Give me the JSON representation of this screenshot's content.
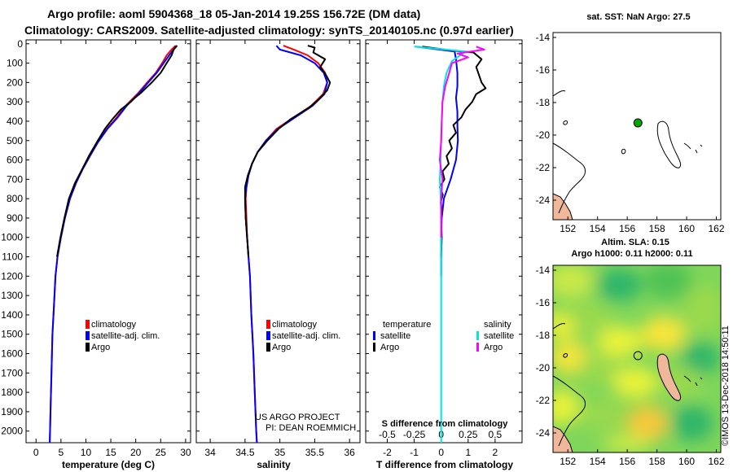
{
  "header": {
    "title_line1": "Argo profile: aoml 5904368_18 05-Jan-2014 19.25S 156.72E (DM data)",
    "title_line2": "Climatology: CARS2009. Satellite-adjusted climatology: synTS_20140105.nc (0.97d earlier)"
  },
  "colors": {
    "climatology": "#ff0000",
    "satellite": "#0000ff",
    "argo": "#000000",
    "salinity_satellite": "#00e5e5",
    "salinity_argo": "#ff00ff"
  },
  "depth_axis": {
    "ticks": [
      "0",
      "100",
      "200",
      "300",
      "400",
      "500",
      "600",
      "700",
      "800",
      "900",
      "1000",
      "1100",
      "1200",
      "1300",
      "1400",
      "1500",
      "1600",
      "1700",
      "1800",
      "1900",
      "2000"
    ],
    "range": [
      -20,
      2060
    ]
  },
  "chart_data": [
    {
      "type": "line",
      "name": "temperature-profile",
      "xlabel": "temperature (deg C)",
      "ylabel": "depth",
      "xlim": [
        -2,
        31
      ],
      "ylim": [
        2060,
        -20
      ],
      "xticks": [
        "0",
        "5",
        "10",
        "15",
        "20",
        "25",
        "30"
      ],
      "xtick_values": [
        0,
        5,
        10,
        15,
        20,
        25,
        30
      ],
      "legend": [
        "climatology",
        "satellite-adj. clim.",
        "Argo"
      ],
      "legend_location": "lower-right",
      "series": [
        {
          "name": "climatology",
          "color": "#ff0000",
          "points": [
            [
              28.0,
              10
            ],
            [
              27.2,
              30
            ],
            [
              26.2,
              60
            ],
            [
              25.3,
              100
            ],
            [
              24.0,
              150
            ],
            [
              22.3,
              200
            ],
            [
              20.3,
              260
            ],
            [
              18.0,
              320
            ],
            [
              16.2,
              380
            ],
            [
              14.2,
              440
            ],
            [
              12.3,
              510
            ],
            [
              10.8,
              580
            ],
            [
              9.3,
              650
            ],
            [
              8.0,
              720
            ],
            [
              6.8,
              800
            ],
            [
              5.8,
              900
            ],
            [
              5.0,
              1000
            ],
            [
              4.3,
              1100
            ],
            [
              3.9,
              1200
            ],
            [
              3.6,
              1350
            ],
            [
              3.3,
              1500
            ],
            [
              3.1,
              1700
            ],
            [
              2.9,
              1900
            ],
            [
              2.75,
              2060
            ]
          ]
        },
        {
          "name": "satellite-adj. clim.",
          "color": "#0000ff",
          "points": [
            [
              28.3,
              10
            ],
            [
              27.6,
              30
            ],
            [
              26.7,
              60
            ],
            [
              25.6,
              100
            ],
            [
              24.2,
              150
            ],
            [
              22.5,
              200
            ],
            [
              20.5,
              260
            ],
            [
              18.2,
              320
            ],
            [
              16.4,
              380
            ],
            [
              14.3,
              440
            ],
            [
              12.4,
              510
            ],
            [
              10.8,
              580
            ],
            [
              9.3,
              650
            ],
            [
              8.0,
              720
            ],
            [
              6.8,
              800
            ],
            [
              5.8,
              900
            ],
            [
              5.0,
              1000
            ],
            [
              4.3,
              1100
            ],
            [
              3.9,
              1200
            ],
            [
              3.6,
              1350
            ],
            [
              3.3,
              1500
            ],
            [
              3.1,
              1700
            ],
            [
              2.9,
              1900
            ],
            [
              2.75,
              2060
            ]
          ]
        },
        {
          "name": "Argo",
          "color": "#000000",
          "points": [
            [
              28.2,
              10
            ],
            [
              27.6,
              30
            ],
            [
              27.2,
              60
            ],
            [
              26.2,
              100
            ],
            [
              25.0,
              150
            ],
            [
              23.2,
              200
            ],
            [
              21.0,
              255
            ],
            [
              19.8,
              280
            ],
            [
              19.0,
              300
            ],
            [
              17.0,
              340
            ],
            [
              15.3,
              390
            ],
            [
              13.8,
              440
            ],
            [
              12.4,
              500
            ],
            [
              10.6,
              580
            ],
            [
              9.2,
              650
            ],
            [
              7.8,
              720
            ],
            [
              6.6,
              800
            ],
            [
              5.7,
              900
            ],
            [
              4.9,
              1000
            ],
            [
              4.2,
              1100
            ]
          ]
        }
      ]
    },
    {
      "type": "line",
      "name": "salinity-profile",
      "xlabel": "salinity",
      "ylabel": "depth",
      "xlim": [
        33.8,
        36.15
      ],
      "ylim": [
        2060,
        -20
      ],
      "xticks": [
        "34",
        "34.5",
        "35",
        "35.5",
        "36"
      ],
      "xtick_values": [
        34,
        34.5,
        35,
        35.5,
        36
      ],
      "legend": [
        "climatology",
        "satellite-adj. clim.",
        "Argo"
      ],
      "legend_location": "lower-right",
      "annotation_line1": "US ARGO PROJECT",
      "annotation_line2": "PI: DEAN ROEMMICH",
      "series": [
        {
          "name": "climatology",
          "color": "#ff0000",
          "points": [
            [
              35.05,
              10
            ],
            [
              35.2,
              30
            ],
            [
              35.4,
              60
            ],
            [
              35.55,
              100
            ],
            [
              35.65,
              150
            ],
            [
              35.68,
              200
            ],
            [
              35.62,
              260
            ],
            [
              35.45,
              320
            ],
            [
              35.2,
              380
            ],
            [
              34.95,
              440
            ],
            [
              34.8,
              500
            ],
            [
              34.68,
              560
            ],
            [
              34.6,
              620
            ],
            [
              34.55,
              680
            ],
            [
              34.52,
              740
            ],
            [
              34.51,
              800
            ],
            [
              34.52,
              900
            ],
            [
              34.53,
              1000
            ],
            [
              34.55,
              1100
            ],
            [
              34.57,
              1200
            ],
            [
              34.59,
              1400
            ],
            [
              34.62,
              1600
            ],
            [
              34.64,
              1800
            ],
            [
              34.66,
              2000
            ],
            [
              34.67,
              2060
            ]
          ]
        },
        {
          "name": "satellite-adj. clim.",
          "color": "#0000ff",
          "points": [
            [
              34.95,
              10
            ],
            [
              35.0,
              30
            ],
            [
              35.3,
              60
            ],
            [
              35.5,
              100
            ],
            [
              35.63,
              150
            ],
            [
              35.68,
              200
            ],
            [
              35.64,
              260
            ],
            [
              35.47,
              320
            ],
            [
              35.22,
              380
            ],
            [
              34.97,
              440
            ],
            [
              34.8,
              500
            ],
            [
              34.68,
              560
            ],
            [
              34.6,
              620
            ],
            [
              34.55,
              680
            ],
            [
              34.52,
              740
            ],
            [
              34.5,
              800
            ],
            [
              34.51,
              900
            ],
            [
              34.53,
              1000
            ],
            [
              34.55,
              1100
            ],
            [
              34.57,
              1200
            ],
            [
              34.59,
              1400
            ],
            [
              34.62,
              1600
            ],
            [
              34.64,
              1800
            ],
            [
              34.66,
              2000
            ],
            [
              34.67,
              2060
            ]
          ]
        },
        {
          "name": "Argo",
          "color": "#000000",
          "points": [
            [
              35.4,
              10
            ],
            [
              35.5,
              20
            ],
            [
              35.48,
              45
            ],
            [
              35.65,
              80
            ],
            [
              35.58,
              120
            ],
            [
              35.66,
              160
            ],
            [
              35.72,
              200
            ],
            [
              35.68,
              240
            ],
            [
              35.55,
              290
            ],
            [
              35.42,
              330
            ],
            [
              35.15,
              390
            ],
            [
              34.98,
              440
            ],
            [
              34.82,
              500
            ],
            [
              34.68,
              560
            ],
            [
              34.6,
              620
            ],
            [
              34.54,
              680
            ],
            [
              34.5,
              740
            ],
            [
              34.5,
              800
            ],
            [
              34.51,
              900
            ],
            [
              34.53,
              1000
            ],
            [
              34.55,
              1100
            ]
          ]
        }
      ]
    },
    {
      "type": "line",
      "name": "difference-profile",
      "xlabel": "T difference from climatology",
      "xlabel_top": "S difference from climatology",
      "ylabel": "depth",
      "xlim": [
        -2.8,
        3.0
      ],
      "ylim": [
        2060,
        -20
      ],
      "xticks": [
        "-2",
        "-1",
        "0",
        "1",
        "2"
      ],
      "xtick_values": [
        -2,
        -1,
        0,
        1,
        2
      ],
      "xticks_top": [
        "-0.5",
        "-0.25",
        "0",
        "0.25",
        "0.5"
      ],
      "xtick_top_values": [
        -2,
        -1,
        0,
        1,
        2
      ],
      "legend_left_title": "temperature",
      "legend_right_title": "salinity",
      "legend": [
        "satellite",
        "Argo"
      ],
      "series": [
        {
          "name": "temperature satellite",
          "color": "#0000ff",
          "points": [
            [
              -0.95,
              15
            ],
            [
              0.5,
              40
            ],
            [
              0.55,
              80
            ],
            [
              0.6,
              150
            ],
            [
              0.6,
              220
            ],
            [
              0.55,
              280
            ],
            [
              0.6,
              350
            ],
            [
              0.6,
              420
            ],
            [
              0.62,
              500
            ],
            [
              0.55,
              600
            ],
            [
              0.35,
              700
            ],
            [
              0.1,
              800
            ],
            [
              0.02,
              900
            ],
            [
              0.0,
              1000
            ],
            [
              0.0,
              1100
            ],
            [
              0.0,
              1200
            ]
          ]
        },
        {
          "name": "temperature Argo",
          "color": "#000000",
          "points": [
            [
              -0.7,
              15
            ],
            [
              0.4,
              35
            ],
            [
              1.2,
              45
            ],
            [
              1.5,
              80
            ],
            [
              1.3,
              120
            ],
            [
              1.4,
              160
            ],
            [
              1.5,
              200
            ],
            [
              1.65,
              230
            ],
            [
              1.3,
              260
            ],
            [
              1.15,
              300
            ],
            [
              0.9,
              340
            ],
            [
              0.75,
              380
            ],
            [
              0.45,
              420
            ],
            [
              0.55,
              460
            ],
            [
              0.3,
              500
            ],
            [
              0.4,
              540
            ],
            [
              0.2,
              580
            ],
            [
              0.28,
              620
            ],
            [
              0.05,
              660
            ],
            [
              0.12,
              700
            ],
            [
              -0.05,
              740
            ],
            [
              0.06,
              780
            ],
            [
              -0.02,
              820
            ],
            [
              0.04,
              860
            ],
            [
              0.0,
              900
            ],
            [
              0.02,
              1000
            ],
            [
              0.0,
              1100
            ]
          ]
        },
        {
          "name": "salinity satellite",
          "color": "#00e5e5",
          "points": [
            [
              -1.0,
              15
            ],
            [
              0.9,
              40
            ],
            [
              0.4,
              90
            ],
            [
              0.2,
              150
            ],
            [
              0.1,
              220
            ],
            [
              0.05,
              300
            ],
            [
              0.02,
              400
            ],
            [
              0.0,
              500
            ],
            [
              -0.02,
              600
            ],
            [
              -0.05,
              700
            ],
            [
              -0.02,
              800
            ],
            [
              0.0,
              900
            ],
            [
              0.0,
              1100
            ],
            [
              0.0,
              1400
            ],
            [
              0.0,
              1700
            ],
            [
              0.0,
              2060
            ]
          ]
        },
        {
          "name": "salinity Argo",
          "color": "#ff00ff",
          "points": [
            [
              1.3,
              15
            ],
            [
              1.6,
              30
            ],
            [
              0.6,
              50
            ],
            [
              1.0,
              70
            ],
            [
              0.4,
              100
            ],
            [
              0.3,
              150
            ],
            [
              0.15,
              220
            ],
            [
              0.05,
              300
            ],
            [
              0.02,
              400
            ],
            [
              0.0,
              500
            ],
            [
              -0.05,
              600
            ],
            [
              0.05,
              700
            ],
            [
              0.0,
              800
            ],
            [
              0.0,
              900
            ],
            [
              0.0,
              1000
            ]
          ]
        }
      ]
    },
    {
      "type": "map",
      "name": "sst-map",
      "title": "sat. SST: NaN Argo: 27.5",
      "xlim": [
        151,
        162.3
      ],
      "ylim": [
        -25.2,
        -13.7
      ],
      "xticks": [
        "152",
        "154",
        "156",
        "158",
        "160",
        "162"
      ],
      "xtick_values": [
        152,
        154,
        156,
        158,
        160,
        162
      ],
      "yticks": [
        "-14",
        "-16",
        "-18",
        "-20",
        "-22",
        "-24"
      ],
      "ytick_values": [
        -14,
        -16,
        -18,
        -20,
        -22,
        -24
      ],
      "argo_position": {
        "lon": 156.72,
        "lat": -19.25
      }
    },
    {
      "type": "map",
      "name": "sla-map",
      "title": "Altim. SLA: 0.15",
      "subtitle": "Argo h1000: 0.11 h2000: 0.11",
      "xlim": [
        151,
        162.3
      ],
      "ylim": [
        -25.2,
        -13.7
      ],
      "xticks": [
        "152",
        "154",
        "156",
        "158",
        "160",
        "162"
      ],
      "xtick_values": [
        152,
        154,
        156,
        158,
        160,
        162
      ],
      "yticks": [
        "-14",
        "-16",
        "-18",
        "-20",
        "-22",
        "-24"
      ],
      "ytick_values": [
        -14,
        -16,
        -18,
        -20,
        -22,
        -24
      ],
      "argo_position": {
        "lon": 156.72,
        "lat": -19.25
      }
    }
  ],
  "footer": {
    "credit": "©IMOS 13-Dec-2018 14:50:11"
  }
}
